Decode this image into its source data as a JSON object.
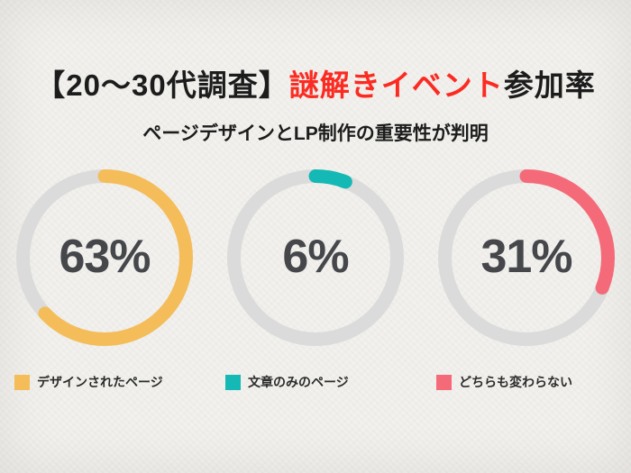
{
  "title": {
    "prefix": "【20〜30代調査】",
    "highlight": "謎解きイベント",
    "suffix": "参加率"
  },
  "subtitle": "ページデザインとLP制作の重要性が判明",
  "colors": {
    "title_text": "#1c1c1c",
    "title_highlight": "#fb2b22",
    "percent_text": "#45474b",
    "background": "#f2f1ed"
  },
  "chart_data": {
    "type": "pie",
    "title": "【20〜30代調査】謎解きイベント参加率",
    "subtitle": "ページデザインとLP制作の重要性が判明",
    "track_color": "#dbdbdb",
    "legend_position": "bottom",
    "charts": [
      {
        "label": "デザインされたページ",
        "value": 63,
        "unit": "%",
        "color": "#f5bd5a"
      },
      {
        "label": "文章のみのページ",
        "value": 6,
        "unit": "%",
        "color": "#14b8b4"
      },
      {
        "label": "どちらも変わらない",
        "value": 31,
        "unit": "%",
        "color": "#f56a79"
      }
    ]
  }
}
